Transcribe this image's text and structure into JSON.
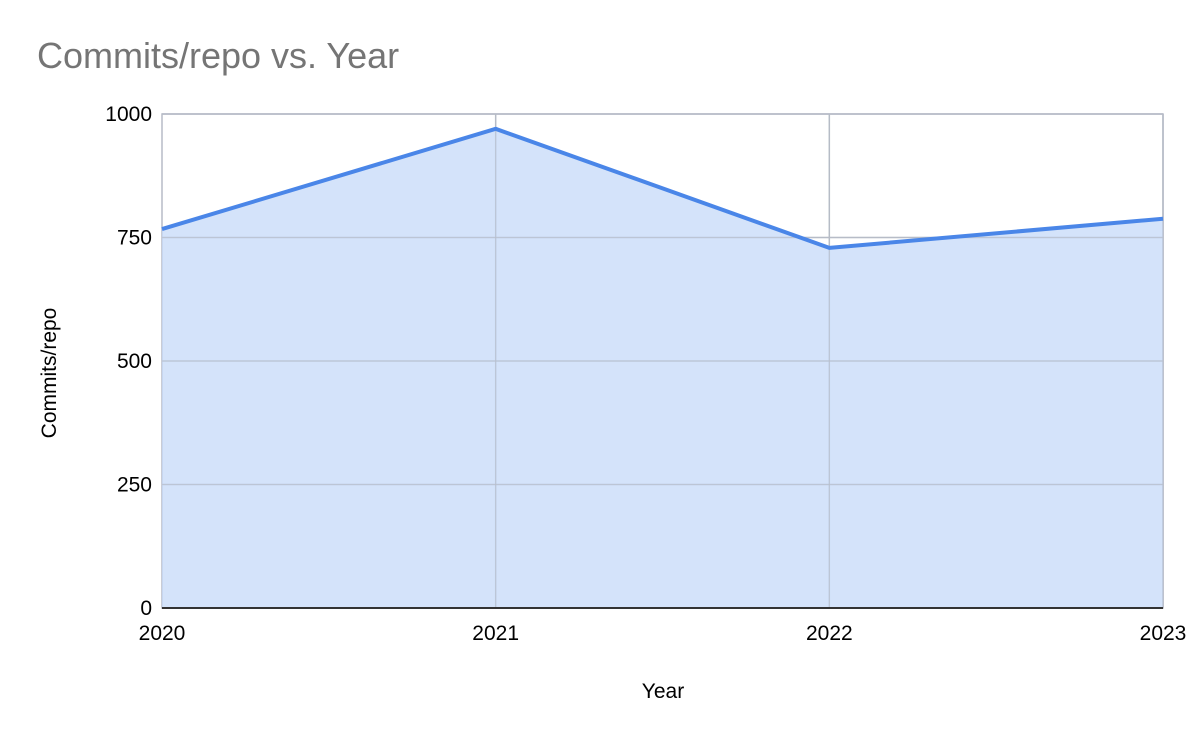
{
  "chart_data": {
    "type": "area",
    "title": "Commits/repo vs. Year",
    "xlabel": "Year",
    "ylabel": "Commits/repo",
    "x": [
      "2020",
      "2021",
      "2022",
      "2023"
    ],
    "series": [
      {
        "values": [
          767,
          970,
          729,
          788
        ]
      }
    ],
    "ylim": [
      0,
      1000
    ],
    "yticks": [
      0,
      250,
      500,
      750,
      1000
    ],
    "grid": true,
    "legend": "none",
    "colors": {
      "line": "#4a86e8",
      "fill": "#c6d9f8",
      "grid": "#b7bcc7",
      "title": "#757575"
    }
  }
}
